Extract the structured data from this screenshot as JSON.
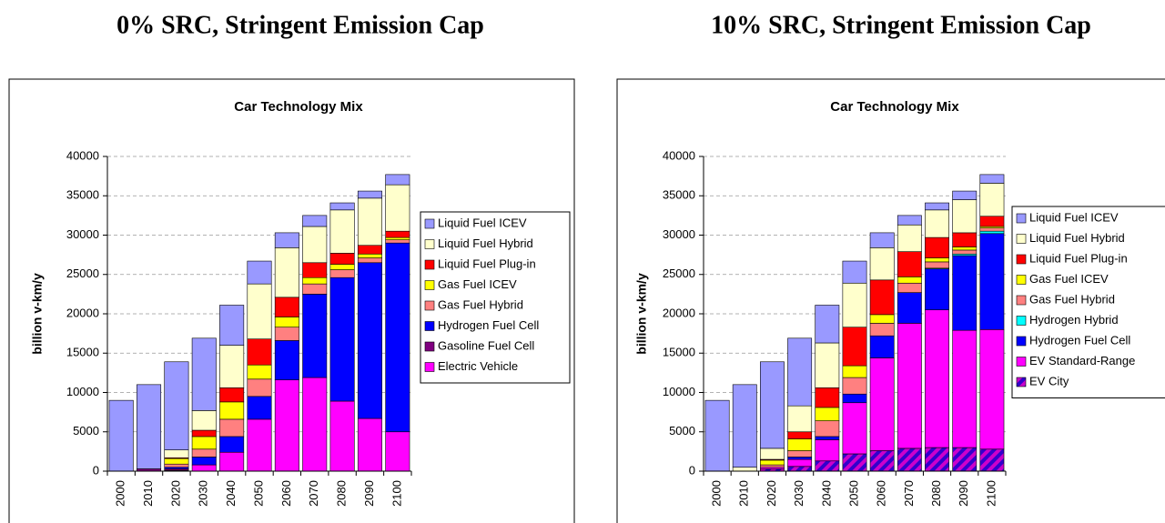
{
  "chart_data": [
    {
      "type": "stacked_bar",
      "heading": "0% SRC, Stringent Emission Cap",
      "title": "Car Technology Mix",
      "y_label": "billion v-km/y",
      "categories": [
        "2000",
        "2010",
        "2020",
        "2030",
        "2040",
        "2050",
        "2060",
        "2070",
        "2080",
        "2090",
        "2100"
      ],
      "ylim": [
        0,
        40000
      ],
      "yticks": [
        0,
        5000,
        10000,
        15000,
        20000,
        25000,
        30000,
        35000,
        40000
      ],
      "grid": true,
      "legend": "right",
      "series": [
        {
          "name": "Electric Vehicle",
          "color": "#FF00FF",
          "values": [
            0,
            0,
            100,
            800,
            2400,
            6600,
            11600,
            11900,
            8900,
            6700,
            5000
          ]
        },
        {
          "name": "Gasoline Fuel Cell",
          "color": "#800080",
          "values": [
            0,
            300,
            200,
            0,
            0,
            0,
            0,
            0,
            0,
            0,
            0
          ]
        },
        {
          "name": "Hydrogen Fuel Cell",
          "color": "#0000FF",
          "values": [
            0,
            0,
            200,
            1000,
            2000,
            2900,
            5000,
            10600,
            15700,
            19800,
            24000
          ]
        },
        {
          "name": "Gas Fuel Hybrid",
          "color": "#FF8080",
          "values": [
            0,
            0,
            400,
            1000,
            2200,
            2200,
            1700,
            1300,
            1000,
            600,
            400
          ]
        },
        {
          "name": "Gas Fuel ICEV",
          "color": "#FFFF00",
          "values": [
            0,
            0,
            700,
            1600,
            2200,
            1800,
            1300,
            800,
            700,
            500,
            300
          ]
        },
        {
          "name": "Liquid Fuel Plug-in",
          "color": "#FF0000",
          "values": [
            0,
            0,
            100,
            800,
            1800,
            3300,
            2500,
            1900,
            1400,
            1100,
            800
          ]
        },
        {
          "name": "Liquid Fuel Hybrid",
          "color": "#FFFFCC",
          "values": [
            0,
            0,
            1000,
            2500,
            5400,
            7000,
            6300,
            4600,
            5500,
            6000,
            5900
          ]
        },
        {
          "name": "Liquid Fuel ICEV",
          "color": "#9999FF",
          "values": [
            9000,
            10700,
            11200,
            9200,
            5100,
            2900,
            1900,
            1400,
            900,
            900,
            1300
          ]
        }
      ]
    },
    {
      "type": "stacked_bar",
      "heading": "10% SRC, Stringent Emission Cap",
      "title": "Car Technology Mix",
      "y_label": "billion v-km/y",
      "categories": [
        "2000",
        "2010",
        "2020",
        "2030",
        "2040",
        "2050",
        "2060",
        "2070",
        "2080",
        "2090",
        "2100"
      ],
      "ylim": [
        0,
        40000
      ],
      "yticks": [
        0,
        5000,
        10000,
        15000,
        20000,
        25000,
        30000,
        35000,
        40000
      ],
      "grid": true,
      "legend": "right",
      "series": [
        {
          "name": "EV City",
          "color": "#7030A0",
          "pattern": "hatch",
          "values": [
            0,
            0,
            300,
            600,
            1300,
            2200,
            2600,
            2900,
            3000,
            3000,
            2800
          ]
        },
        {
          "name": "EV Standard-Range",
          "color": "#FF00FF",
          "values": [
            0,
            0,
            200,
            900,
            2700,
            6500,
            11800,
            15900,
            17500,
            14900,
            15200
          ]
        },
        {
          "name": "Hydrogen Fuel Cell",
          "color": "#0000FF",
          "values": [
            0,
            0,
            0,
            300,
            400,
            1100,
            2800,
            3900,
            5200,
            9500,
            12200
          ]
        },
        {
          "name": "Hydrogen Hybrid",
          "color": "#00FFFF",
          "values": [
            0,
            0,
            0,
            0,
            0,
            0,
            0,
            0,
            100,
            200,
            300
          ]
        },
        {
          "name": "Gas Fuel Hybrid",
          "color": "#FF8080",
          "values": [
            0,
            0,
            300,
            800,
            2000,
            2100,
            1600,
            1200,
            800,
            500,
            400
          ]
        },
        {
          "name": "Gas Fuel ICEV",
          "color": "#FFFF00",
          "values": [
            0,
            0,
            600,
            1500,
            1700,
            1500,
            1100,
            800,
            500,
            400,
            200
          ]
        },
        {
          "name": "Liquid Fuel Plug-in",
          "color": "#FF0000",
          "values": [
            0,
            0,
            100,
            900,
            2500,
            4900,
            4400,
            3200,
            2600,
            1800,
            1300
          ]
        },
        {
          "name": "Liquid Fuel Hybrid",
          "color": "#FFFFCC",
          "values": [
            0,
            500,
            1400,
            3300,
            5700,
            5600,
            4100,
            3400,
            3500,
            4200,
            4200
          ]
        },
        {
          "name": "Liquid Fuel ICEV",
          "color": "#9999FF",
          "values": [
            9000,
            10500,
            11000,
            8600,
            4800,
            2800,
            1900,
            1200,
            900,
            1100,
            1100
          ]
        }
      ]
    }
  ]
}
